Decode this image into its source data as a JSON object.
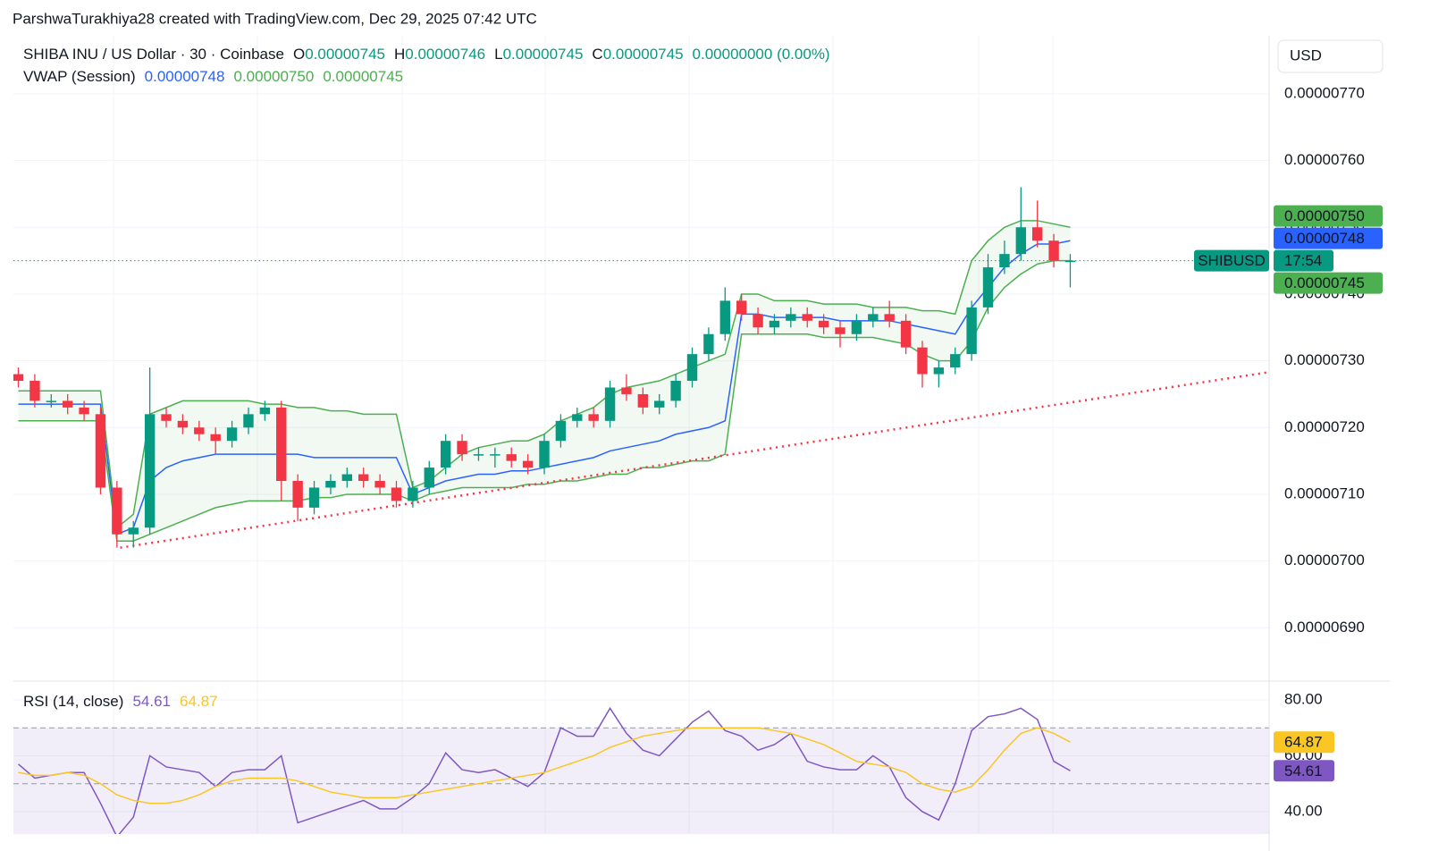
{
  "header": {
    "attribution": "ParshwaTurakhiya28 created with TradingView.com, Dec 29, 2025 07:42 UTC"
  },
  "chart_data": [
    {
      "type": "candlestick",
      "title": "SHIBA INU / US Dollar · 30 · Coinbase",
      "ohlc_legend": [
        {
          "label": "O",
          "value": "0.00000745"
        },
        {
          "label": "H",
          "value": "0.00000746"
        },
        {
          "label": "L",
          "value": "0.00000745"
        },
        {
          "label": "C",
          "value": "0.00000745"
        }
      ],
      "change": "0.00000000 (0.00%)",
      "currency": "USD",
      "xlim": [
        -0.3,
        76.1
      ],
      "ylim": [
        6.82e-06,
        7.787e-06
      ],
      "yticks": [
        {
          "value": 7.7e-06,
          "label": "0.00000770"
        },
        {
          "value": 7.6e-06,
          "label": "0.00000760"
        },
        {
          "value": 7.5e-06,
          "label": "0.00000750"
        },
        {
          "value": 7.4e-06,
          "label": "0.00000740"
        },
        {
          "value": 7.3e-06,
          "label": "0.00000730"
        },
        {
          "value": 7.2e-06,
          "label": "0.00000720"
        },
        {
          "value": 7.1e-06,
          "label": "0.00000710"
        },
        {
          "value": 7e-06,
          "label": "0.00000700"
        },
        {
          "value": 6.9e-06,
          "label": "0.00000690"
        }
      ],
      "grid": true,
      "up_color": "#089981",
      "down_color": "#f23645",
      "open": [
        7.28e-06,
        7.27e-06,
        7.24e-06,
        7.24e-06,
        7.23e-06,
        7.22e-06,
        7.11e-06,
        7.04e-06,
        7.05e-06,
        7.22e-06,
        7.21e-06,
        7.2e-06,
        7.19e-06,
        7.18e-06,
        7.2e-06,
        7.22e-06,
        7.23e-06,
        7.12e-06,
        7.08e-06,
        7.11e-06,
        7.12e-06,
        7.13e-06,
        7.12e-06,
        7.11e-06,
        7.09e-06,
        7.11e-06,
        7.14e-06,
        7.18e-06,
        7.16e-06,
        7.16e-06,
        7.16e-06,
        7.15e-06,
        7.14e-06,
        7.18e-06,
        7.21e-06,
        7.22e-06,
        7.21e-06,
        7.26e-06,
        7.25e-06,
        7.23e-06,
        7.24e-06,
        7.27e-06,
        7.31e-06,
        7.34e-06,
        7.39e-06,
        7.37e-06,
        7.35e-06,
        7.36e-06,
        7.37e-06,
        7.36e-06,
        7.35e-06,
        7.34e-06,
        7.36e-06,
        7.37e-06,
        7.36e-06,
        7.32e-06,
        7.28e-06,
        7.29e-06,
        7.31e-06,
        7.38e-06,
        7.44e-06,
        7.46e-06,
        7.5e-06,
        7.48e-06,
        7.45e-06
      ],
      "high": [
        7.29e-06,
        7.28e-06,
        7.25e-06,
        7.25e-06,
        7.24e-06,
        7.23e-06,
        7.12e-06,
        7.06e-06,
        7.29e-06,
        7.23e-06,
        7.22e-06,
        7.21e-06,
        7.2e-06,
        7.21e-06,
        7.23e-06,
        7.24e-06,
        7.24e-06,
        7.13e-06,
        7.12e-06,
        7.13e-06,
        7.14e-06,
        7.14e-06,
        7.13e-06,
        7.12e-06,
        7.12e-06,
        7.15e-06,
        7.19e-06,
        7.19e-06,
        7.17e-06,
        7.17e-06,
        7.17e-06,
        7.16e-06,
        7.19e-06,
        7.22e-06,
        7.23e-06,
        7.23e-06,
        7.27e-06,
        7.28e-06,
        7.26e-06,
        7.25e-06,
        7.28e-06,
        7.32e-06,
        7.35e-06,
        7.41e-06,
        7.4e-06,
        7.38e-06,
        7.37e-06,
        7.38e-06,
        7.38e-06,
        7.37e-06,
        7.36e-06,
        7.37e-06,
        7.38e-06,
        7.39e-06,
        7.37e-06,
        7.33e-06,
        7.3e-06,
        7.32e-06,
        7.39e-06,
        7.46e-06,
        7.48e-06,
        7.56e-06,
        7.54e-06,
        7.49e-06,
        7.46e-06
      ],
      "low": [
        7.26e-06,
        7.23e-06,
        7.23e-06,
        7.22e-06,
        7.21e-06,
        7.1e-06,
        7.02e-06,
        7.02e-06,
        7.04e-06,
        7.2e-06,
        7.19e-06,
        7.18e-06,
        7.16e-06,
        7.17e-06,
        7.19e-06,
        7.21e-06,
        7.09e-06,
        7.06e-06,
        7.07e-06,
        7.1e-06,
        7.11e-06,
        7.11e-06,
        7.1e-06,
        7.08e-06,
        7.08e-06,
        7.1e-06,
        7.13e-06,
        7.15e-06,
        7.15e-06,
        7.14e-06,
        7.14e-06,
        7.13e-06,
        7.13e-06,
        7.17e-06,
        7.2e-06,
        7.2e-06,
        7.2e-06,
        7.24e-06,
        7.22e-06,
        7.22e-06,
        7.23e-06,
        7.26e-06,
        7.3e-06,
        7.33e-06,
        7.36e-06,
        7.34e-06,
        7.34e-06,
        7.35e-06,
        7.35e-06,
        7.34e-06,
        7.32e-06,
        7.33e-06,
        7.35e-06,
        7.35e-06,
        7.31e-06,
        7.26e-06,
        7.26e-06,
        7.28e-06,
        7.3e-06,
        7.37e-06,
        7.43e-06,
        7.45e-06,
        7.47e-06,
        7.44e-06,
        7.41e-06
      ],
      "close": [
        7.27e-06,
        7.24e-06,
        7.24e-06,
        7.23e-06,
        7.22e-06,
        7.11e-06,
        7.04e-06,
        7.05e-06,
        7.22e-06,
        7.21e-06,
        7.2e-06,
        7.19e-06,
        7.18e-06,
        7.2e-06,
        7.22e-06,
        7.23e-06,
        7.12e-06,
        7.08e-06,
        7.11e-06,
        7.12e-06,
        7.13e-06,
        7.12e-06,
        7.11e-06,
        7.09e-06,
        7.11e-06,
        7.14e-06,
        7.18e-06,
        7.16e-06,
        7.16e-06,
        7.16e-06,
        7.15e-06,
        7.14e-06,
        7.18e-06,
        7.21e-06,
        7.22e-06,
        7.21e-06,
        7.26e-06,
        7.25e-06,
        7.23e-06,
        7.24e-06,
        7.27e-06,
        7.31e-06,
        7.34e-06,
        7.39e-06,
        7.37e-06,
        7.35e-06,
        7.36e-06,
        7.37e-06,
        7.36e-06,
        7.35e-06,
        7.34e-06,
        7.36e-06,
        7.37e-06,
        7.36e-06,
        7.32e-06,
        7.28e-06,
        7.29e-06,
        7.31e-06,
        7.38e-06,
        7.44e-06,
        7.46e-06,
        7.5e-06,
        7.48e-06,
        7.45e-06,
        7.45e-06
      ],
      "vwap": {
        "name": "VWAP (Session)",
        "value_labels": [
          "0.00000748",
          "0.00000750",
          "0.00000745"
        ],
        "fill": "rgba(76,175,80,0.07)",
        "series": [
          {
            "color": "#2962ff",
            "values": [
              7.235e-06,
              7.235e-06,
              7.235e-06,
              7.235e-06,
              7.235e-06,
              7.235e-06,
              7.04e-06,
              7.05e-06,
              7.12e-06,
              7.14e-06,
              7.15e-06,
              7.155e-06,
              7.16e-06,
              7.16e-06,
              7.16e-06,
              7.16e-06,
              7.16e-06,
              7.16e-06,
              7.155e-06,
              7.155e-06,
              7.155e-06,
              7.155e-06,
              7.155e-06,
              7.155e-06,
              7.1e-06,
              7.11e-06,
              7.12e-06,
              7.125e-06,
              7.13e-06,
              7.13e-06,
              7.135e-06,
              7.135e-06,
              7.14e-06,
              7.145e-06,
              7.15e-06,
              7.155e-06,
              7.165e-06,
              7.17e-06,
              7.175e-06,
              7.18e-06,
              7.19e-06,
              7.195e-06,
              7.2e-06,
              7.21e-06,
              7.37e-06,
              7.37e-06,
              7.365e-06,
              7.365e-06,
              7.365e-06,
              7.365e-06,
              7.36e-06,
              7.36e-06,
              7.36e-06,
              7.36e-06,
              7.355e-06,
              7.35e-06,
              7.345e-06,
              7.34e-06,
              7.38e-06,
              7.41e-06,
              7.44e-06,
              7.46e-06,
              7.475e-06,
              7.475e-06,
              7.48e-06
            ]
          },
          {
            "color": "#4caf50",
            "values": [
              7.255e-06,
              7.255e-06,
              7.255e-06,
              7.255e-06,
              7.255e-06,
              7.255e-06,
              7.05e-06,
              7.07e-06,
              7.22e-06,
              7.23e-06,
              7.24e-06,
              7.24e-06,
              7.24e-06,
              7.24e-06,
              7.24e-06,
              7.235e-06,
              7.235e-06,
              7.23e-06,
              7.23e-06,
              7.225e-06,
              7.225e-06,
              7.22e-06,
              7.22e-06,
              7.22e-06,
              7.11e-06,
              7.12e-06,
              7.14e-06,
              7.16e-06,
              7.17e-06,
              7.175e-06,
              7.18e-06,
              7.18e-06,
              7.19e-06,
              7.21e-06,
              7.22e-06,
              7.23e-06,
              7.25e-06,
              7.26e-06,
              7.265e-06,
              7.27e-06,
              7.28e-06,
              7.29e-06,
              7.3e-06,
              7.31e-06,
              7.4e-06,
              7.4e-06,
              7.39e-06,
              7.39e-06,
              7.39e-06,
              7.385e-06,
              7.385e-06,
              7.385e-06,
              7.38e-06,
              7.38e-06,
              7.38e-06,
              7.375e-06,
              7.375e-06,
              7.37e-06,
              7.45e-06,
              7.48e-06,
              7.5e-06,
              7.51e-06,
              7.51e-06,
              7.505e-06,
              7.5e-06
            ]
          },
          {
            "color": "#4caf50",
            "values": [
              7.21e-06,
              7.21e-06,
              7.21e-06,
              7.21e-06,
              7.21e-06,
              7.21e-06,
              7.03e-06,
              7.03e-06,
              7.04e-06,
              7.05e-06,
              7.06e-06,
              7.07e-06,
              7.08e-06,
              7.085e-06,
              7.09e-06,
              7.09e-06,
              7.09e-06,
              7.09e-06,
              7.095e-06,
              7.095e-06,
              7.1e-06,
              7.1e-06,
              7.1e-06,
              7.1e-06,
              7.09e-06,
              7.1e-06,
              7.105e-06,
              7.11e-06,
              7.11e-06,
              7.11e-06,
              7.11e-06,
              7.115e-06,
              7.115e-06,
              7.12e-06,
              7.12e-06,
              7.125e-06,
              7.13e-06,
              7.13e-06,
              7.14e-06,
              7.14e-06,
              7.145e-06,
              7.15e-06,
              7.15e-06,
              7.16e-06,
              7.34e-06,
              7.34e-06,
              7.34e-06,
              7.34e-06,
              7.34e-06,
              7.335e-06,
              7.335e-06,
              7.335e-06,
              7.335e-06,
              7.33e-06,
              7.325e-06,
              7.31e-06,
              7.3e-06,
              7.3e-06,
              7.33e-06,
              7.38e-06,
              7.41e-06,
              7.43e-06,
              7.445e-06,
              7.45e-06,
              7.45e-06
            ]
          }
        ]
      },
      "trendline": {
        "x": [
          6.2,
          76.1
        ],
        "y": [
          7.02e-06,
          7.283e-06
        ],
        "color": "#f23645"
      },
      "last_price": {
        "value": 7.45e-06,
        "symbol": "SHIBUSD",
        "countdown": "17:54",
        "color": "#089981"
      }
    },
    {
      "type": "line",
      "title": "RSI (14, close)",
      "xlim": [
        -0.3,
        76.1
      ],
      "ylim": [
        32.3,
        86.7
      ],
      "yticks": [
        {
          "value": 80,
          "label": "80.00"
        },
        {
          "value": 60,
          "label": "60.00"
        },
        {
          "value": 40,
          "label": "40.00"
        }
      ],
      "bands": [
        70,
        50,
        30
      ],
      "band_fill": "rgba(126,87,194,0.1)",
      "series": [
        {
          "color": "#7e57c2",
          "values": [
            57,
            52,
            53,
            54,
            54,
            43,
            31,
            38,
            60,
            56,
            55,
            54,
            49,
            54,
            55,
            55,
            60,
            36,
            38,
            40,
            42,
            44,
            41,
            41,
            45,
            50,
            61,
            55,
            54,
            55,
            52,
            49,
            54,
            70,
            67,
            67,
            77,
            68,
            62,
            60,
            66,
            72,
            76,
            69,
            67,
            62,
            64,
            68,
            58,
            56,
            55,
            55,
            60,
            56,
            45,
            40,
            37,
            50,
            69,
            74,
            75,
            77,
            73,
            58,
            54.61
          ]
        },
        {
          "color": "#f9c623",
          "values": [
            54,
            53,
            53,
            54,
            53,
            50,
            46,
            44,
            43,
            43,
            44,
            46,
            49,
            51,
            52,
            52,
            52,
            51,
            49,
            47,
            46,
            45,
            45,
            45,
            46,
            47,
            48,
            49,
            50,
            51,
            52,
            53,
            54,
            56,
            58,
            60,
            63,
            65,
            67,
            68,
            69,
            70,
            70,
            70,
            70,
            70,
            69,
            68,
            66,
            64,
            61,
            58,
            57,
            56,
            54,
            50,
            48,
            47,
            49,
            55,
            62,
            68,
            70,
            68,
            64.87
          ]
        }
      ]
    }
  ]
}
